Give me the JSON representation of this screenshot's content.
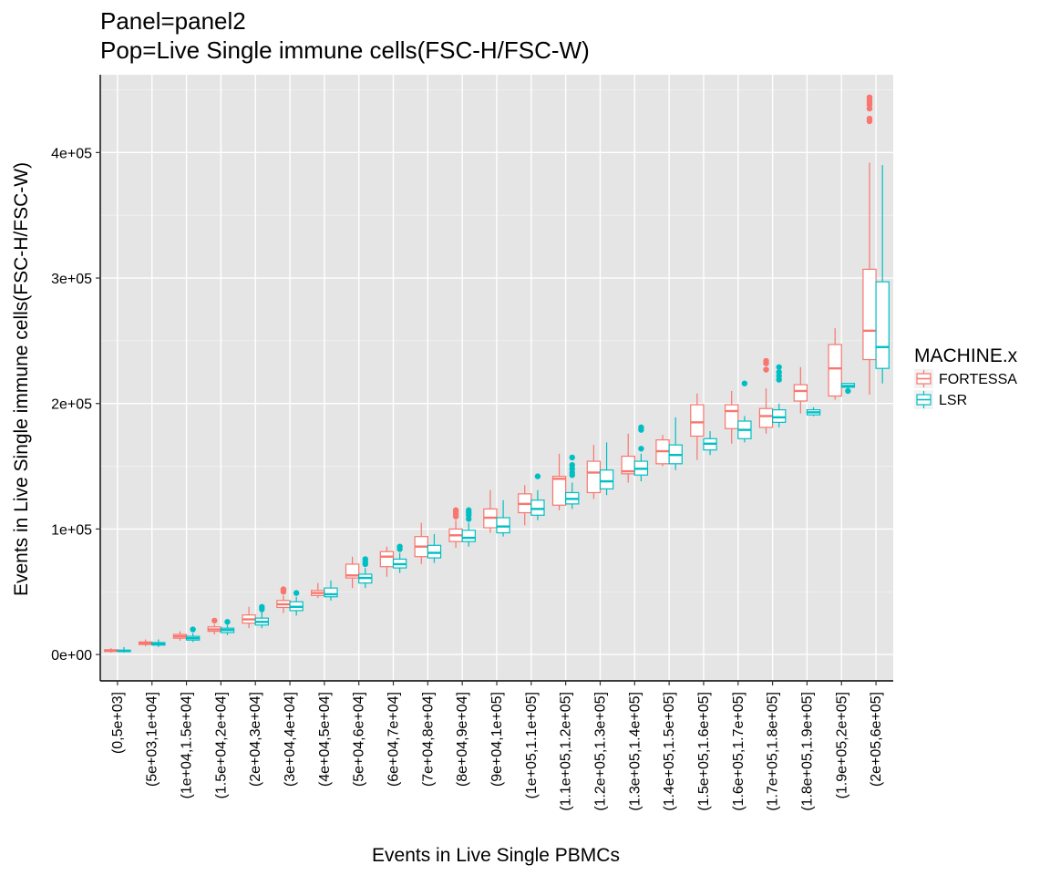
{
  "chart_data": {
    "type": "boxplot",
    "title_lines": [
      "Panel=panel2",
      "Pop=Live Single immune cells(FSC-H/FSC-W)"
    ],
    "xlabel": "Events in Live Single PBMCs",
    "ylabel": "Events in Live Single immune cells(FSC-H/FSC-W)",
    "ylim": [
      -21000,
      462000
    ],
    "yticks": [
      {
        "value": 0,
        "label": "0e+00"
      },
      {
        "value": 100000,
        "label": "1e+05"
      },
      {
        "value": 200000,
        "label": "2e+05"
      },
      {
        "value": 300000,
        "label": "3e+05"
      },
      {
        "value": 400000,
        "label": "4e+05"
      }
    ],
    "grid": true,
    "legend": {
      "title": "MACHINE.x",
      "position": "right",
      "entries": [
        "FORTESSA",
        "LSR"
      ]
    },
    "categories": [
      "(0,5e+03]",
      "(5e+03,1e+04]",
      "(1e+04,1.5e+04]",
      "(1.5e+04,2e+04]",
      "(2e+04,3e+04]",
      "(3e+04,4e+04]",
      "(4e+04,5e+04]",
      "(5e+04,6e+04]",
      "(6e+04,7e+04]",
      "(7e+04,8e+04]",
      "(8e+04,9e+04]",
      "(9e+04,1e+05]",
      "(1e+05,1.1e+05]",
      "(1.1e+05,1.2e+05]",
      "(1.2e+05,1.3e+05]",
      "(1.3e+05,1.4e+05]",
      "(1.4e+05,1.5e+05]",
      "(1.5e+05,1.6e+05]",
      "(1.6e+05,1.7e+05]",
      "(1.7e+05,1.8e+05]",
      "(1.8e+05,1.9e+05]",
      "(1.9e+05,2e+05]",
      "(2e+05,6e+05]"
    ],
    "series": [
      {
        "name": "FORTESSA",
        "color": "#F8766D",
        "boxes": [
          {
            "min": 1500,
            "q1": 2500,
            "median": 3000,
            "q3": 3800,
            "max": 5000,
            "outliers": []
          },
          {
            "min": 6500,
            "q1": 8000,
            "median": 9000,
            "q3": 10000,
            "max": 12000,
            "outliers": []
          },
          {
            "min": 11000,
            "q1": 13000,
            "median": 14500,
            "q3": 16000,
            "max": 18500,
            "outliers": []
          },
          {
            "min": 16000,
            "q1": 18500,
            "median": 20000,
            "q3": 22000,
            "max": 24000,
            "outliers": [
              27000
            ]
          },
          {
            "min": 21000,
            "q1": 25000,
            "median": 28000,
            "q3": 31500,
            "max": 38000,
            "outliers": []
          },
          {
            "min": 33000,
            "q1": 37500,
            "median": 40000,
            "q3": 43000,
            "max": 47000,
            "outliers": [
              50000,
              51000,
              52000
            ]
          },
          {
            "min": 45000,
            "q1": 47000,
            "median": 49000,
            "q3": 51000,
            "max": 57000,
            "outliers": []
          },
          {
            "min": 53000,
            "q1": 61000,
            "median": 63000,
            "q3": 72000,
            "max": 78000,
            "outliers": []
          },
          {
            "min": 62000,
            "q1": 70000,
            "median": 78000,
            "q3": 82000,
            "max": 86000,
            "outliers": []
          },
          {
            "min": 72000,
            "q1": 78000,
            "median": 86000,
            "q3": 94000,
            "max": 105000,
            "outliers": []
          },
          {
            "min": 85000,
            "q1": 90000,
            "median": 95000,
            "q3": 100000,
            "max": 107000,
            "outliers": [
              110000,
              112000,
              114000,
              115000
            ]
          },
          {
            "min": 97000,
            "q1": 101000,
            "median": 109000,
            "q3": 116000,
            "max": 131000,
            "outliers": []
          },
          {
            "min": 103000,
            "q1": 113000,
            "median": 120000,
            "q3": 128000,
            "max": 135000,
            "outliers": []
          },
          {
            "min": 115000,
            "q1": 119000,
            "median": 140000,
            "q3": 142000,
            "max": 160000,
            "outliers": []
          },
          {
            "min": 124000,
            "q1": 129000,
            "median": 145000,
            "q3": 154000,
            "max": 167000,
            "outliers": []
          },
          {
            "min": 137000,
            "q1": 144000,
            "median": 146000,
            "q3": 158000,
            "max": 176000,
            "outliers": []
          },
          {
            "min": 150000,
            "q1": 152000,
            "median": 162000,
            "q3": 171000,
            "max": 175000,
            "outliers": []
          },
          {
            "min": 155000,
            "q1": 174000,
            "median": 185000,
            "q3": 199000,
            "max": 208000,
            "outliers": []
          },
          {
            "min": 168000,
            "q1": 180000,
            "median": 194000,
            "q3": 199000,
            "max": 210000,
            "outliers": []
          },
          {
            "min": 176000,
            "q1": 181000,
            "median": 190000,
            "q3": 196000,
            "max": 212000,
            "outliers": [
              227000,
              232000,
              234000
            ]
          },
          {
            "min": 192000,
            "q1": 202000,
            "median": 210000,
            "q3": 215000,
            "max": 229000,
            "outliers": []
          },
          {
            "min": 203000,
            "q1": 206000,
            "median": 228000,
            "q3": 247000,
            "max": 260000,
            "outliers": []
          },
          {
            "min": 207000,
            "q1": 235000,
            "median": 258000,
            "q3": 307000,
            "max": 392000,
            "outliers": [
              425000,
              427000,
              435000,
              438000,
              440000,
              442000,
              444000
            ]
          }
        ]
      },
      {
        "name": "LSR",
        "color": "#00BFC4",
        "boxes": [
          {
            "min": 1500,
            "q1": 2300,
            "median": 2800,
            "q3": 3500,
            "max": 6000,
            "outliers": []
          },
          {
            "min": 6000,
            "q1": 7500,
            "median": 8300,
            "q3": 9500,
            "max": 12000,
            "outliers": []
          },
          {
            "min": 10000,
            "q1": 11500,
            "median": 13000,
            "q3": 14500,
            "max": 17000,
            "outliers": [
              20000
            ]
          },
          {
            "min": 15500,
            "q1": 17500,
            "median": 19500,
            "q3": 21000,
            "max": 23500,
            "outliers": [
              26000
            ]
          },
          {
            "min": 21000,
            "q1": 23500,
            "median": 26000,
            "q3": 29000,
            "max": 34000,
            "outliers": [
              36000,
              38000
            ]
          },
          {
            "min": 31000,
            "q1": 35000,
            "median": 38000,
            "q3": 42000,
            "max": 46000,
            "outliers": [
              49000
            ]
          },
          {
            "min": 43000,
            "q1": 46000,
            "median": 48000,
            "q3": 53000,
            "max": 59000,
            "outliers": []
          },
          {
            "min": 53000,
            "q1": 57000,
            "median": 61000,
            "q3": 64000,
            "max": 69000,
            "outliers": [
              72000,
              74000,
              76000
            ]
          },
          {
            "min": 65000,
            "q1": 69000,
            "median": 72000,
            "q3": 76000,
            "max": 81000,
            "outliers": [
              84000,
              86000
            ]
          },
          {
            "min": 73000,
            "q1": 77000,
            "median": 81000,
            "q3": 87000,
            "max": 96000,
            "outliers": []
          },
          {
            "min": 86000,
            "q1": 90000,
            "median": 93000,
            "q3": 99000,
            "max": 105000,
            "outliers": [
              108000,
              111000,
              113000,
              115000
            ]
          },
          {
            "min": 94000,
            "q1": 97000,
            "median": 102000,
            "q3": 109000,
            "max": 123000,
            "outliers": []
          },
          {
            "min": 107000,
            "q1": 111000,
            "median": 116000,
            "q3": 123000,
            "max": 131000,
            "outliers": [
              142000
            ]
          },
          {
            "min": 116000,
            "q1": 120000,
            "median": 124000,
            "q3": 129000,
            "max": 137000,
            "outliers": [
              143000,
              145000,
              148000,
              151000,
              157000
            ]
          },
          {
            "min": 127000,
            "q1": 132000,
            "median": 138000,
            "q3": 147000,
            "max": 169000,
            "outliers": []
          },
          {
            "min": 138000,
            "q1": 143000,
            "median": 148000,
            "q3": 154000,
            "max": 160000,
            "outliers": [
              164000,
              179000,
              181000
            ]
          },
          {
            "min": 147000,
            "q1": 152000,
            "median": 159000,
            "q3": 167000,
            "max": 189000,
            "outliers": []
          },
          {
            "min": 159000,
            "q1": 163000,
            "median": 168000,
            "q3": 172000,
            "max": 178000,
            "outliers": []
          },
          {
            "min": 169000,
            "q1": 172000,
            "median": 179000,
            "q3": 186000,
            "max": 190000,
            "outliers": [
              216000
            ]
          },
          {
            "min": 181000,
            "q1": 185000,
            "median": 189000,
            "q3": 195000,
            "max": 200000,
            "outliers": [
              219000,
              222000,
              225000,
              229000
            ]
          },
          {
            "min": 190000,
            "q1": 191000,
            "median": 193000,
            "q3": 195000,
            "max": 197000,
            "outliers": []
          },
          {
            "min": 212000,
            "q1": 213000,
            "median": 214000,
            "q3": 216000,
            "max": 216000,
            "outliers": [
              210000
            ]
          },
          {
            "min": 216000,
            "q1": 228000,
            "median": 245000,
            "q3": 297000,
            "max": 390000,
            "outliers": []
          }
        ]
      }
    ]
  }
}
